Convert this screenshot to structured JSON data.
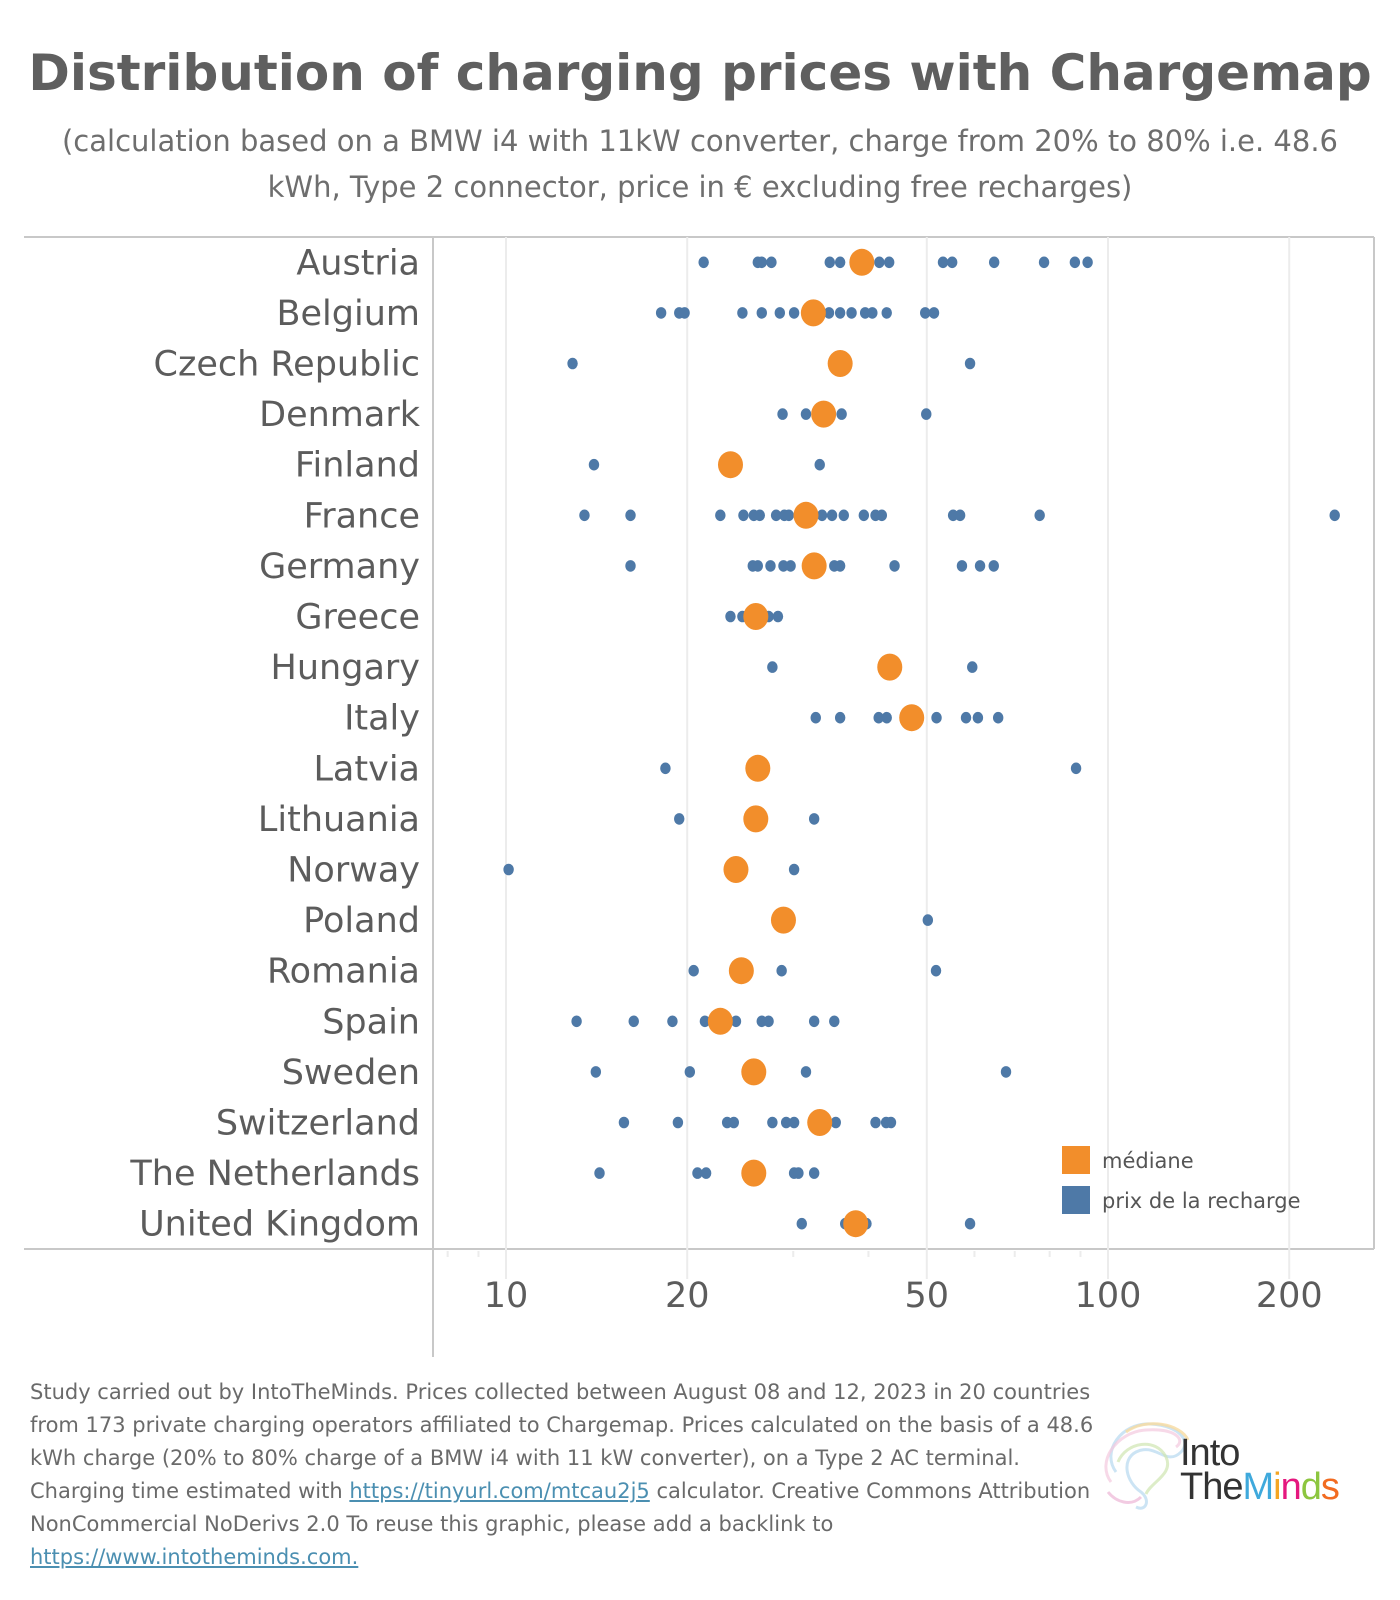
{
  "header": {
    "title": "Distribution of charging prices with Chargemap",
    "subtitle": "(calculation based on a BMW i4 with 11kW converter, charge from 20% to 80% i.e. 48.6 kWh, Type 2 connector, price in € excluding free recharges)"
  },
  "colors": {
    "median": "#f28e2b",
    "price": "#4e79a7",
    "gridline": "#ececec",
    "border": "#c8c8c8"
  },
  "chart_data": {
    "type": "scatter",
    "title": "Distribution of charging prices with Chargemap",
    "xlabel": "",
    "ylabel": "",
    "x_scale": "log",
    "xlim": [
      8.4,
      270
    ],
    "x_ticks": [
      10,
      20,
      50,
      100,
      200
    ],
    "x_tick_labels": [
      "10",
      "20",
      "50",
      "100",
      "200"
    ],
    "grid": true,
    "legend": {
      "placement": "bottom-right",
      "entries": [
        {
          "key": "median",
          "label": "médiane"
        },
        {
          "key": "price",
          "label": "prix de la recharge"
        }
      ]
    },
    "categories": [
      "Austria",
      "Belgium",
      "Czech Republic",
      "Denmark",
      "Finland",
      "France",
      "Germany",
      "Greece",
      "Hungary",
      "Italy",
      "Latvia",
      "Lithuania",
      "Norway",
      "Poland",
      "Romania",
      "Spain",
      "Sweden",
      "Switzerland",
      "The Netherlands",
      "United Kingdom"
    ],
    "series": [
      {
        "name": "prix de la recharge",
        "key": "price",
        "values": [
          [
            21.3,
            26.2,
            26.6,
            27.6,
            34.5,
            35.9,
            41.7,
            43.3,
            53.2,
            55.1,
            64.7,
            78.3,
            88.1,
            92.5
          ],
          [
            18.1,
            19.4,
            19.8,
            24.7,
            26.6,
            28.5,
            30.1,
            34.4,
            35.9,
            37.5,
            39.5,
            40.6,
            42.9,
            49.7,
            51.4
          ],
          [
            12.9,
            59.0
          ],
          [
            28.8,
            31.5,
            36.1,
            49.9
          ],
          [
            14.0,
            33.2
          ],
          [
            13.5,
            16.1,
            22.7,
            24.8,
            25.8,
            26.4,
            28.1,
            29.0,
            29.5,
            33.5,
            34.8,
            36.4,
            39.3,
            41.1,
            42.1,
            55.3,
            56.8,
            77.0,
            238
          ],
          [
            16.1,
            25.7,
            26.2,
            27.5,
            28.9,
            29.7,
            35.1,
            35.9,
            44.2,
            57.2,
            61.3,
            64.6
          ],
          [
            23.6,
            24.7,
            27.3,
            28.3
          ],
          [
            27.7,
            59.5
          ],
          [
            32.7,
            35.9,
            41.6,
            42.9,
            51.9,
            58.1,
            60.8,
            65.7
          ],
          [
            18.4,
            88.5
          ],
          [
            19.4,
            32.5
          ],
          [
            10.1,
            30.1
          ],
          [
            50.2
          ],
          [
            20.5,
            28.7,
            51.8
          ],
          [
            13.1,
            16.3,
            18.9,
            21.4,
            24.1,
            26.6,
            27.3,
            32.5,
            35.1
          ],
          [
            14.1,
            20.2,
            31.5,
            67.7
          ],
          [
            15.7,
            19.3,
            23.3,
            23.9,
            27.7,
            29.2,
            30.1,
            35.3,
            41.1,
            42.8,
            43.6
          ],
          [
            14.3,
            20.8,
            21.5,
            30.1,
            30.6,
            32.5
          ],
          [
            31.0,
            36.6,
            39.7,
            59.0
          ]
        ]
      },
      {
        "name": "médiane",
        "key": "median",
        "values": [
          39.0,
          32.4,
          35.9,
          33.7,
          23.6,
          31.5,
          32.5,
          26.0,
          43.4,
          47.2,
          26.2,
          26.0,
          24.1,
          28.9,
          24.6,
          22.7,
          25.8,
          33.2,
          25.8,
          38.1
        ]
      }
    ]
  },
  "footer": {
    "text_1": "Study carried out by IntoTheMinds. Prices collected between August 08 and 12, 2023 in 20 countries from 173 private charging operators affiliated to Chargemap. Prices calculated on the basis of a 48.6 kWh charge (20% to 80% charge of a BMW i4 with 11 kW converter), on a Type 2 AC terminal. Charging time estimated with ",
    "link_1": "https://tinyurl.com/mtcau2j5",
    "text_2": " calculator. Creative Commons Attribution NonCommercial NoDerivs 2.0 To reuse this graphic, please add a backlink to ",
    "link_2": "https://www.intotheminds.com."
  },
  "logo": {
    "line1": "Into",
    "line2_parts": [
      {
        "text": "The",
        "color": "#333333"
      },
      {
        "text": "M",
        "color": "#3fa9dc"
      },
      {
        "text": "i",
        "color": "#f5a623"
      },
      {
        "text": "n",
        "color": "#e5177e"
      },
      {
        "text": "d",
        "color": "#8cc63f"
      },
      {
        "text": "s",
        "color": "#f26b21"
      }
    ]
  }
}
